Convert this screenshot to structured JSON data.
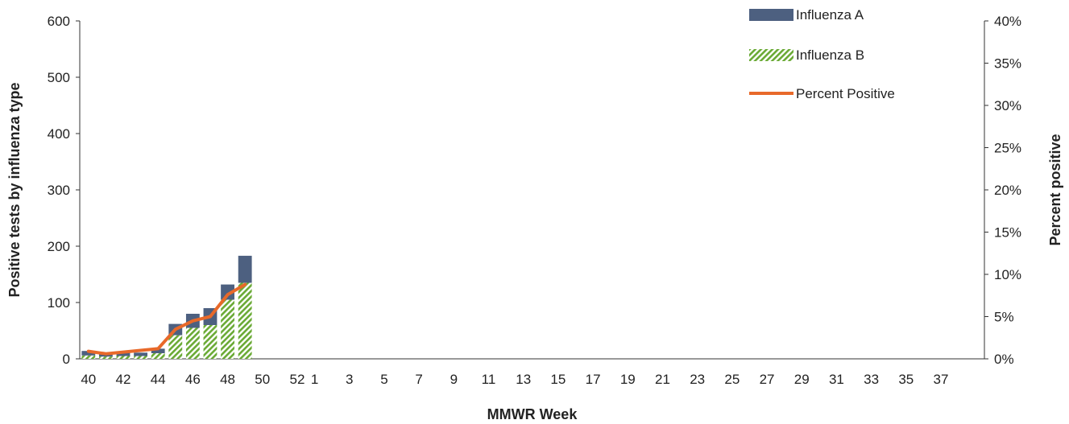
{
  "chart_data": {
    "type": "bar",
    "stacked": true,
    "xlabel": "MMWR Week",
    "ylabel": "Positive tests by influenza type",
    "y2label": "Percent positive",
    "ylim": [
      0,
      600
    ],
    "y2lim": [
      0,
      40
    ],
    "y_ticks": [
      "0",
      "100",
      "200",
      "300",
      "400",
      "500",
      "600"
    ],
    "y2_ticks": [
      "0%",
      "5%",
      "10%",
      "15%",
      "20%",
      "25%",
      "30%",
      "35%",
      "40%"
    ],
    "weeks": [
      "40",
      "41",
      "42",
      "43",
      "44",
      "45",
      "46",
      "47",
      "48",
      "49",
      "50",
      "51",
      "52",
      "1",
      "2",
      "3",
      "4",
      "5",
      "6",
      "7",
      "8",
      "9",
      "10",
      "11",
      "12",
      "13",
      "14",
      "15",
      "16",
      "17",
      "18",
      "19",
      "20",
      "21",
      "22",
      "23",
      "24",
      "25",
      "26",
      "27",
      "28",
      "29",
      "30",
      "31",
      "32",
      "33",
      "34",
      "35",
      "36",
      "37",
      "38",
      "39"
    ],
    "tick_labels": [
      "40",
      "42",
      "44",
      "46",
      "48",
      "50",
      "52",
      "1",
      "3",
      "5",
      "7",
      "9",
      "11",
      "13",
      "15",
      "17",
      "19",
      "21",
      "23",
      "25",
      "27",
      "29",
      "31",
      "33",
      "35",
      "37"
    ],
    "series": [
      {
        "name": "Influenza B",
        "kind": "bar",
        "color": "#6aaa35",
        "pattern": "diagonal-hatch",
        "values": [
          6,
          4,
          5,
          5,
          10,
          42,
          55,
          60,
          105,
          135
        ]
      },
      {
        "name": "Influenza A",
        "kind": "bar",
        "color": "#4d6080",
        "values": [
          8,
          4,
          6,
          6,
          8,
          20,
          25,
          30,
          27,
          48
        ]
      },
      {
        "name": "Percent Positive",
        "kind": "line",
        "axis": "secondary",
        "color": "#e8692a",
        "values": [
          0.9,
          0.6,
          0.8,
          1.0,
          1.2,
          3.5,
          4.5,
          5.0,
          7.6,
          8.8
        ]
      }
    ],
    "legend": {
      "placement": "top-right",
      "items": [
        {
          "label": "Influenza A",
          "color": "#4d6080",
          "shape": "bar"
        },
        {
          "label": "Influenza B",
          "color": "#6aaa35",
          "shape": "hatched-bar"
        },
        {
          "label": "Percent Positive",
          "color": "#e8692a",
          "shape": "line"
        }
      ]
    },
    "grid": false
  }
}
